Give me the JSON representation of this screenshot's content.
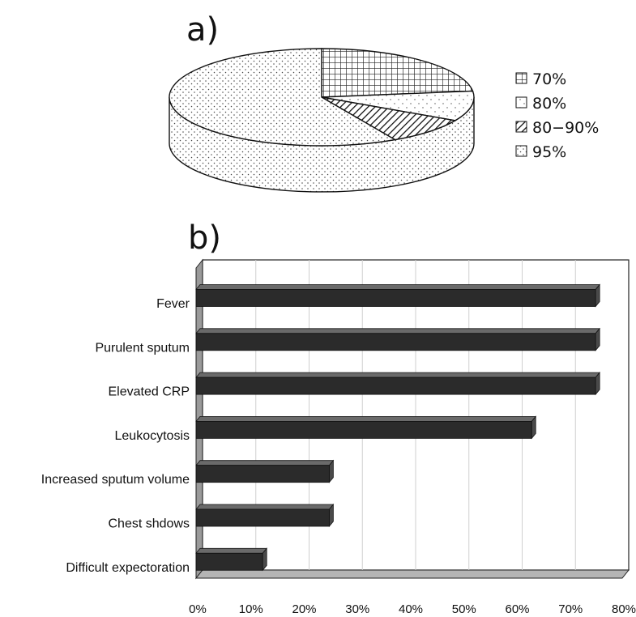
{
  "chart_data": [
    {
      "panel": "a)",
      "type": "pie",
      "slices": [
        {
          "label": "70%",
          "value": 23,
          "pattern": "grid"
        },
        {
          "label": "80%",
          "value": 10,
          "pattern": "dots"
        },
        {
          "label": "80−90%",
          "value": 9,
          "pattern": "hatch"
        },
        {
          "label": "95%",
          "value": 58,
          "pattern": "dots"
        }
      ],
      "legend_position": "right",
      "style": "3d"
    },
    {
      "panel": "b)",
      "type": "bar",
      "orientation": "horizontal",
      "style": "3d",
      "categories": [
        "Fever",
        "Purulent sputum",
        "Elevated CRP",
        "Leukocytosis",
        "Increased sputum volume",
        "Chest shdows",
        "Difficult expectoration"
      ],
      "values": [
        75,
        75,
        75,
        63,
        25,
        25,
        12.5
      ],
      "xlim": [
        0,
        80
      ],
      "xticks": [
        "0%",
        "10%",
        "20%",
        "30%",
        "40%",
        "50%",
        "60%",
        "70%",
        "80%"
      ],
      "bar_color": "#2b2b2b",
      "grid": true
    }
  ]
}
